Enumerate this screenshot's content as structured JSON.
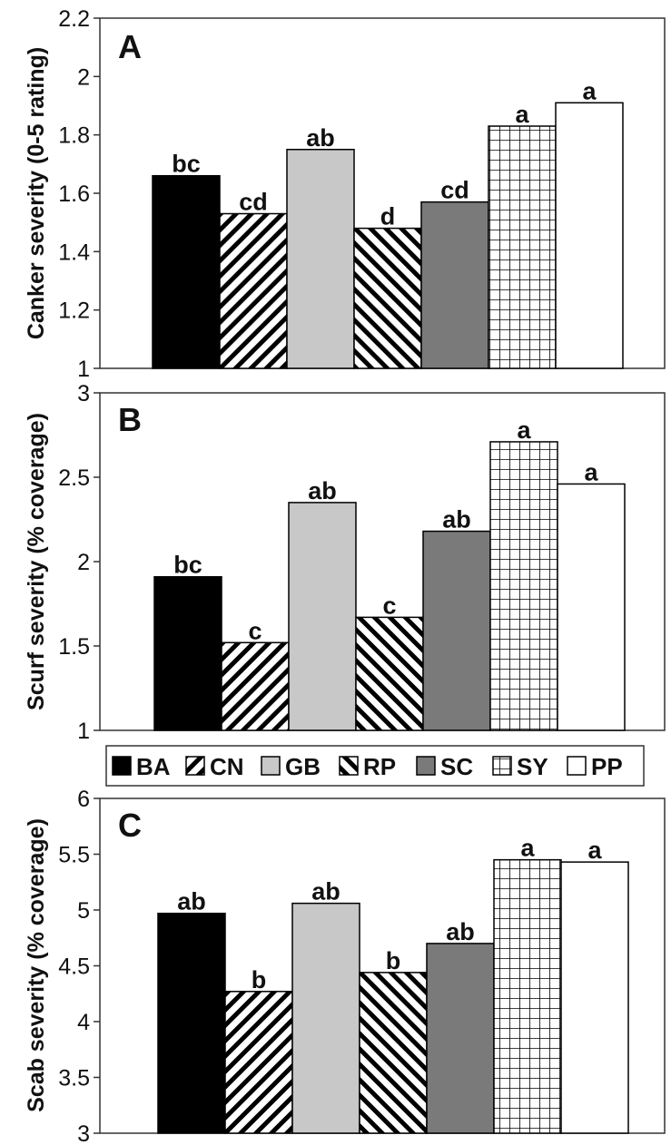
{
  "chart_data": [
    {
      "type": "bar",
      "panel_label": "A",
      "ylabel": "Canker severity (0-5 rating)",
      "ylim": [
        1,
        2.2
      ],
      "yticks": [
        "1",
        "1.2",
        "1.4",
        "1.6",
        "1.8",
        "2",
        "2.2"
      ],
      "categories": [
        "BA",
        "CN",
        "GB",
        "RP",
        "SC",
        "SY",
        "PP"
      ],
      "values": [
        1.66,
        1.53,
        1.75,
        1.48,
        1.57,
        1.83,
        1.91
      ],
      "letters": [
        "bc",
        "cd",
        "ab",
        "d",
        "cd",
        "a",
        "a"
      ]
    },
    {
      "type": "bar",
      "panel_label": "B",
      "ylabel": "Scurf severity (% coverage)",
      "ylim": [
        1,
        3
      ],
      "yticks": [
        "1",
        "1.5",
        "2",
        "2.5",
        "3"
      ],
      "categories": [
        "BA",
        "CN",
        "GB",
        "RP",
        "SC",
        "SY",
        "PP"
      ],
      "values": [
        1.91,
        1.52,
        2.35,
        1.67,
        2.18,
        2.71,
        2.46
      ],
      "letters": [
        "bc",
        "c",
        "ab",
        "c",
        "ab",
        "a",
        "a"
      ]
    },
    {
      "type": "bar",
      "panel_label": "C",
      "ylabel": "Scab severity (% coverage)",
      "ylim": [
        3,
        6
      ],
      "yticks": [
        "3",
        "3.5",
        "4",
        "4.5",
        "5",
        "5.5",
        "6"
      ],
      "categories": [
        "BA",
        "CN",
        "GB",
        "RP",
        "SC",
        "SY",
        "PP"
      ],
      "values": [
        4.97,
        4.27,
        5.06,
        4.44,
        4.7,
        5.45,
        5.43
      ],
      "letters": [
        "ab",
        "b",
        "ab",
        "b",
        "ab",
        "a",
        "a"
      ]
    }
  ],
  "legend": {
    "entries": [
      "BA",
      "CN",
      "GB",
      "RP",
      "SC",
      "SY",
      "PP"
    ]
  }
}
